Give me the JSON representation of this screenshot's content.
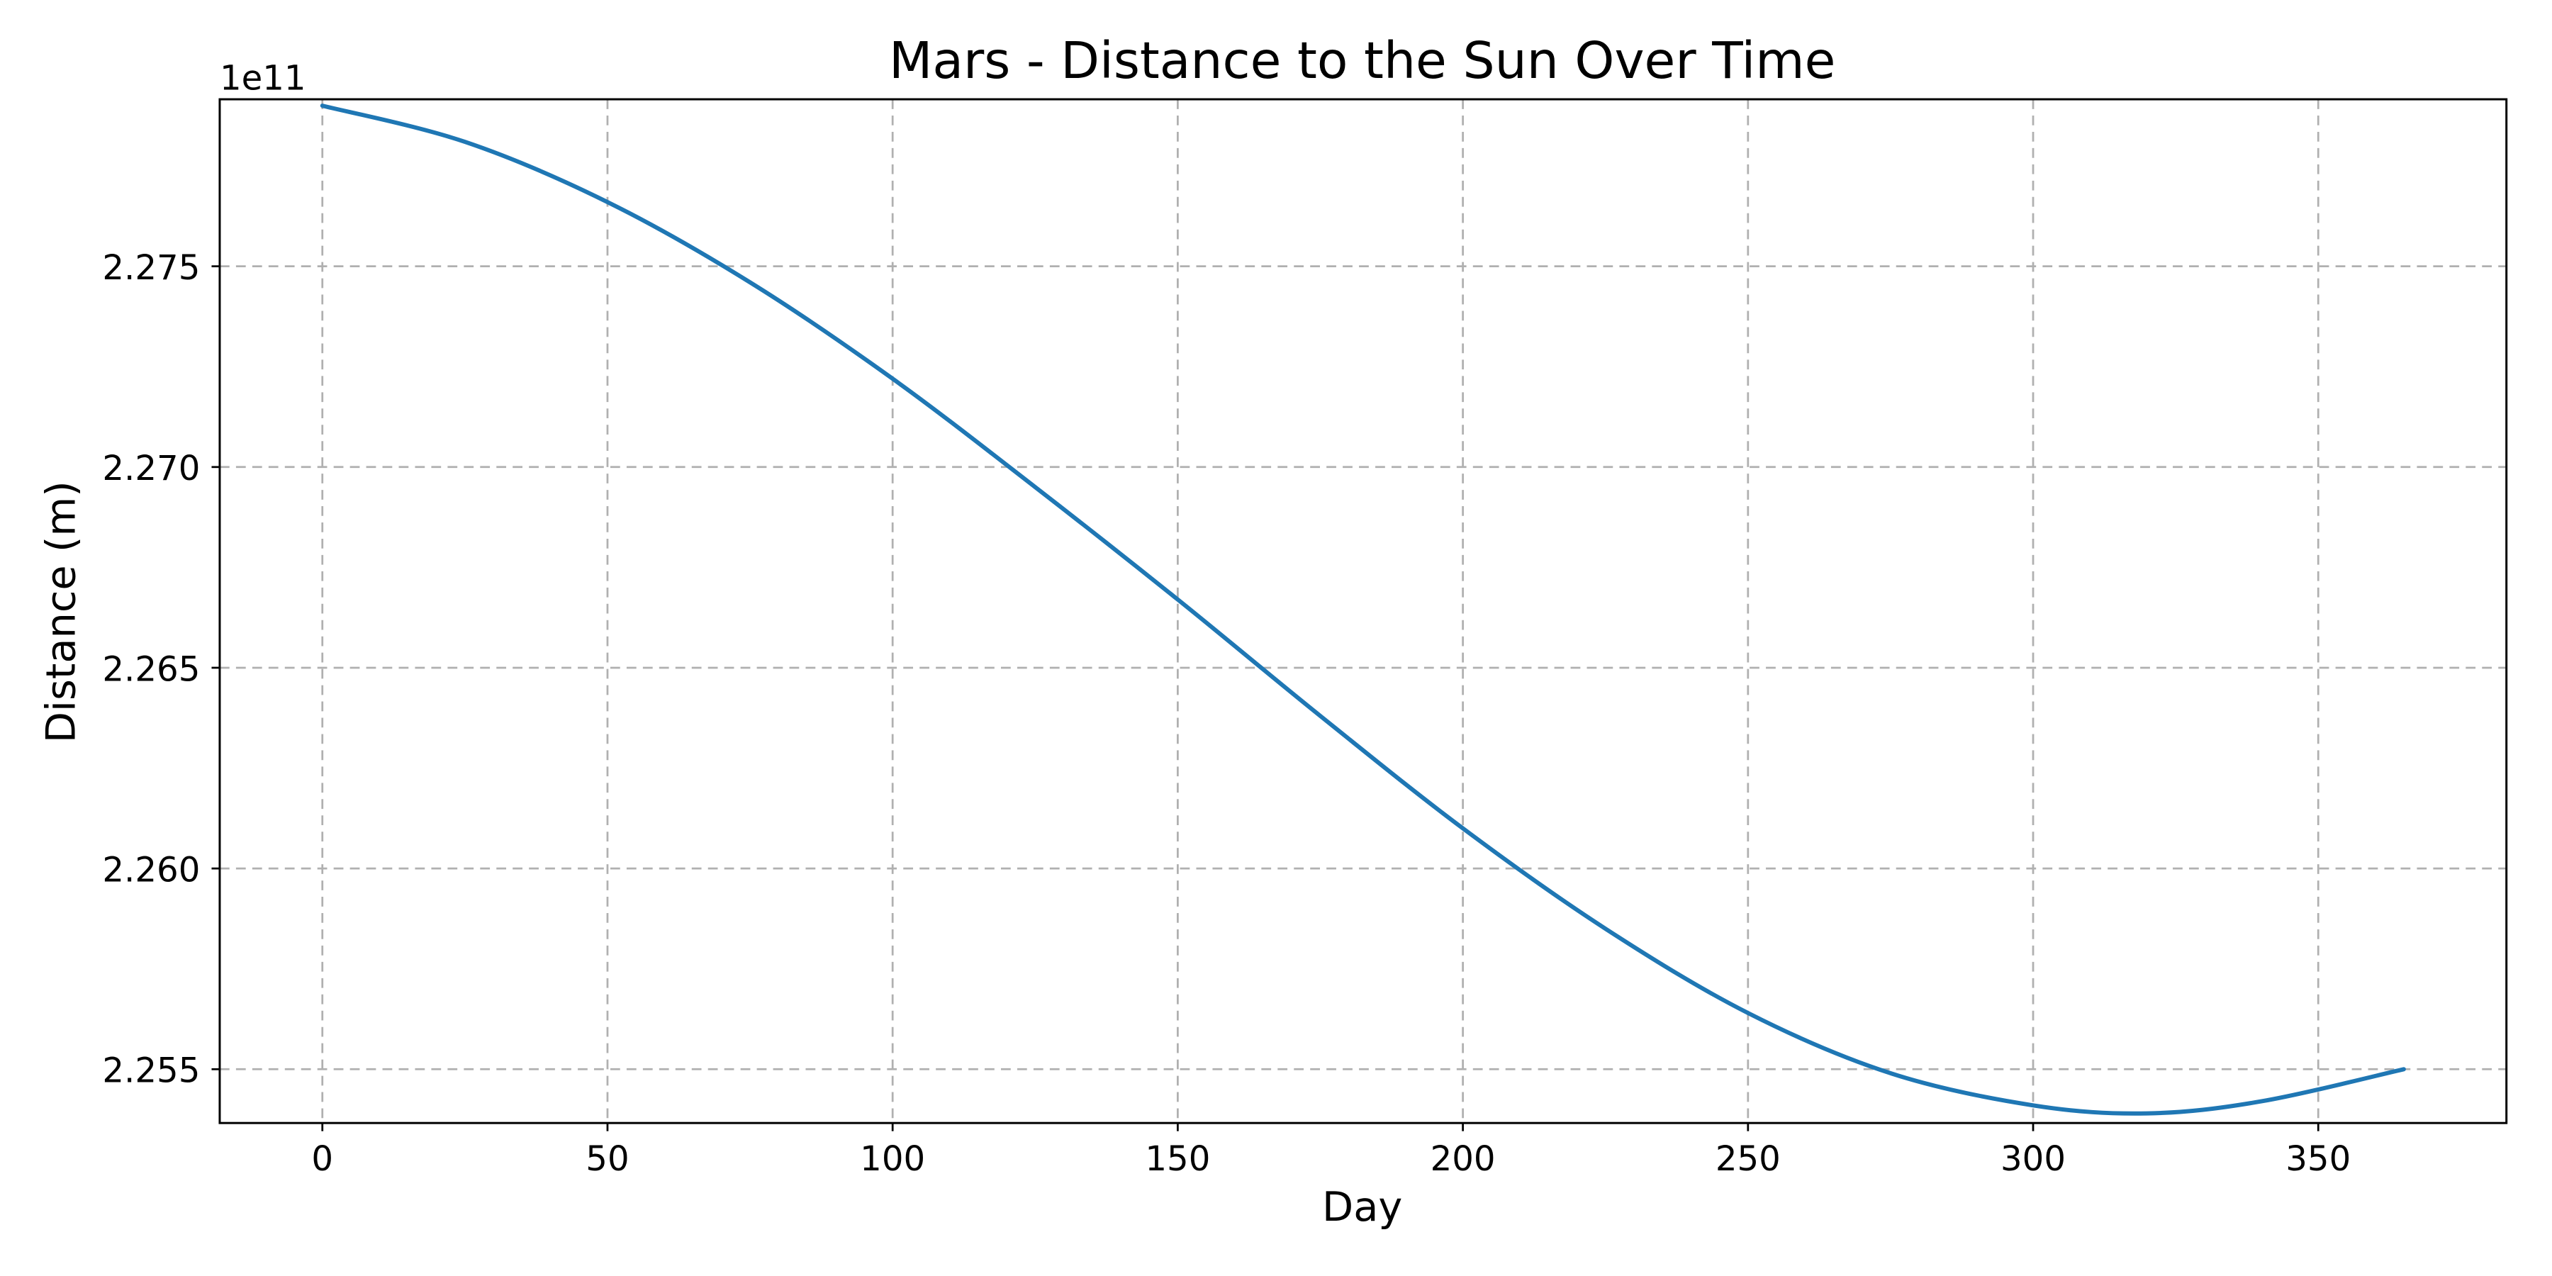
{
  "chart_data": {
    "type": "line",
    "title": "Mars - Distance to the Sun Over Time",
    "xlabel": "Day",
    "ylabel": "Distance (m)",
    "y_offset_label": "1e11",
    "xlim": [
      -18,
      383
    ],
    "ylim": [
      2.25366,
      2.27916
    ],
    "x_ticks": [
      0,
      50,
      100,
      150,
      200,
      250,
      300,
      350
    ],
    "y_ticks": [
      2.255,
      2.26,
      2.265,
      2.27,
      2.275
    ],
    "y_tick_labels": [
      "2.255",
      "2.260",
      "2.265",
      "2.270",
      "2.275"
    ],
    "grid": true,
    "series": [
      {
        "color": "#1f77b4",
        "x": [
          0,
          25,
          50,
          75,
          100,
          125,
          150,
          175,
          200,
          225,
          250,
          275,
          300,
          320,
          340,
          365
        ],
        "y": [
          2.279,
          2.2781,
          2.2766,
          2.2746,
          2.2722,
          2.2695,
          2.2667,
          2.2638,
          2.261,
          2.2585,
          2.2564,
          2.2549,
          2.2541,
          2.2539,
          2.2542,
          2.255
        ]
      }
    ]
  }
}
